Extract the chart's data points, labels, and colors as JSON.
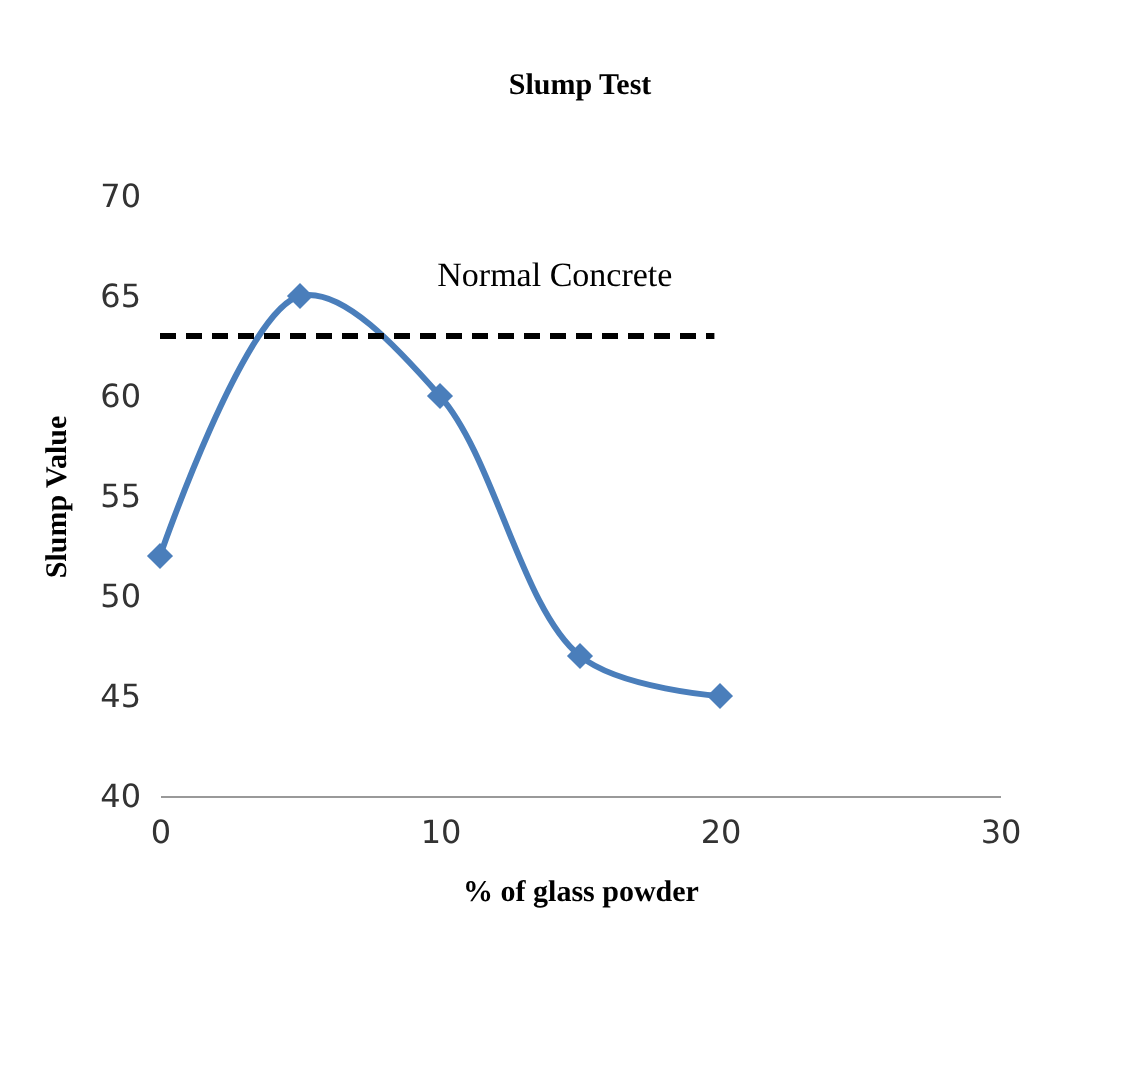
{
  "chart_data": {
    "type": "line",
    "title": "Slump Test",
    "xlabel": "% of glass powder",
    "ylabel": "Slump  Value",
    "x": [
      0,
      5,
      10,
      15,
      20
    ],
    "series": [
      {
        "color": "#4a7ebb",
        "values": [
          52,
          65,
          60,
          47,
          45
        ]
      }
    ],
    "xlim": [
      0,
      30
    ],
    "xticks": [
      0,
      10,
      20,
      30
    ],
    "ylim": [
      40,
      70
    ],
    "yticks": [
      40,
      45,
      50,
      55,
      60,
      65,
      70
    ],
    "ref_lines": [
      {
        "axis": "y",
        "value": 63,
        "label": "Normal Concrete",
        "color": "#000000",
        "line_style": "dashed"
      }
    ],
    "marker": "diamond",
    "line_style": "solid",
    "grid": false
  }
}
